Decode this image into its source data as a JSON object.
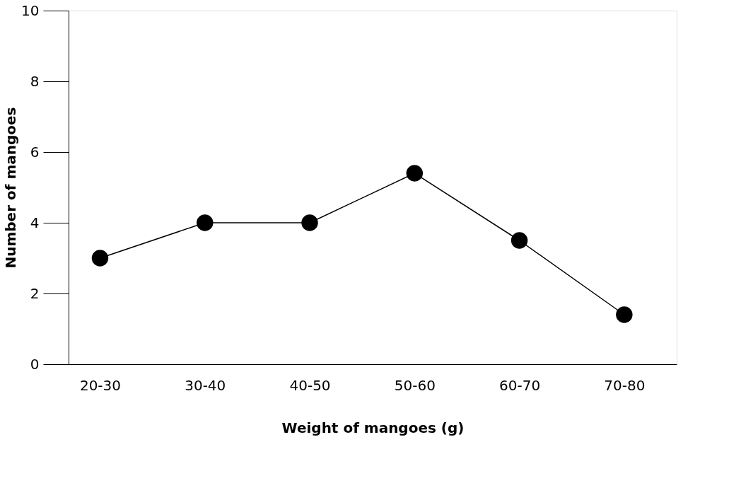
{
  "chart_data": {
    "type": "line",
    "xlabel": "Weight of mangoes (g)",
    "ylabel": "Number of mangoes",
    "categories": [
      "20-30",
      "30-40",
      "40-50",
      "50-60",
      "60-70",
      "70-80"
    ],
    "series": [
      {
        "color": "#000000",
        "values": [
          3,
          4,
          4,
          5.4,
          3.5,
          1.4
        ]
      }
    ],
    "ylim": [
      0,
      10
    ],
    "yticks": [
      0,
      2,
      4,
      6,
      8,
      10
    ],
    "grid": false,
    "marker": "circle",
    "line_style": "solid"
  }
}
